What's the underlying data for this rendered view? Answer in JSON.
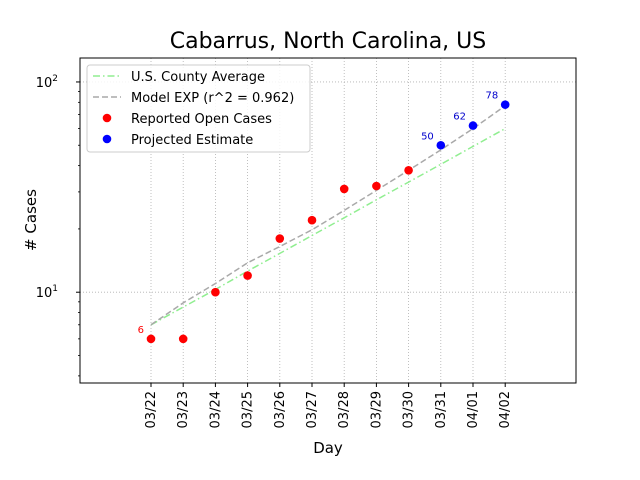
{
  "chart_data": {
    "type": "line",
    "title": "Cabarrus, North Carolina, US",
    "xlabel": "Day",
    "ylabel": "# Cases",
    "yscale": "log",
    "ylim": [
      3.7,
      130
    ],
    "grid": true,
    "legend_position": "top-left",
    "categories": [
      "03/22",
      "03/23",
      "03/24",
      "03/25",
      "03/26",
      "03/27",
      "03/28",
      "03/29",
      "03/30",
      "03/31",
      "04/01",
      "04/02"
    ],
    "y_ticks": [
      {
        "value": 10,
        "base": "10",
        "exp": "1"
      },
      {
        "value": 100,
        "base": "10",
        "exp": "2"
      }
    ],
    "series": [
      {
        "name": "U.S. County Average",
        "kind": "line",
        "style": "dashdot",
        "color": "#90ee90",
        "values": [
          7,
          8.5,
          10.3,
          12.6,
          15.3,
          18.6,
          22.6,
          27.5,
          33.4,
          40.6,
          49.4,
          60
        ]
      },
      {
        "name": "Model EXP (r^2 = 0.962)",
        "kind": "line",
        "style": "dashed",
        "color": "#a9a9a9",
        "values": [
          7,
          8.9,
          11,
          13.8,
          16.5,
          19.8,
          24.5,
          30.5,
          38,
          47.5,
          60,
          77
        ]
      },
      {
        "name": "Reported Open Cases",
        "kind": "points",
        "color": "#ff0000",
        "values": [
          6,
          6,
          10,
          12,
          18,
          22,
          31,
          32,
          38,
          null,
          null,
          null
        ]
      },
      {
        "name": "Projected Estimate",
        "kind": "points",
        "color": "#0000ff",
        "values": [
          null,
          null,
          null,
          null,
          null,
          null,
          null,
          null,
          null,
          50,
          62,
          78
        ]
      }
    ],
    "annotations": [
      {
        "category": "03/22",
        "value": 6,
        "text": "6",
        "color": "#ff0000"
      },
      {
        "category": "03/31",
        "value": 50,
        "text": "50",
        "color": "#0000cc"
      },
      {
        "category": "04/01",
        "value": 62,
        "text": "62",
        "color": "#0000cc"
      },
      {
        "category": "04/02",
        "value": 78,
        "text": "78",
        "color": "#0000cc"
      }
    ]
  }
}
